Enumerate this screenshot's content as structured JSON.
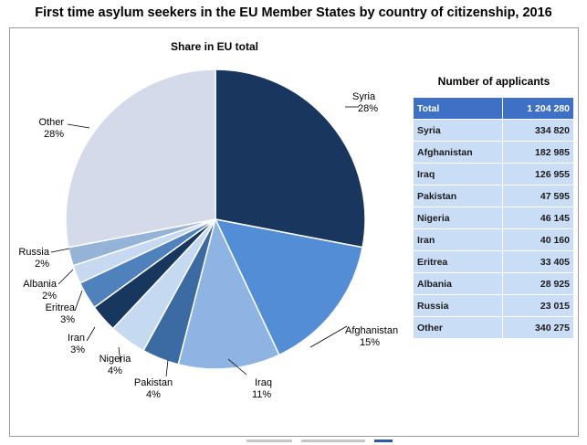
{
  "title": "First time asylum seekers in the EU Member States by country of citizenship, 2016",
  "chart_data": [
    {
      "type": "pie",
      "title": "Share in EU total",
      "categories": [
        "Syria",
        "Afghanistan",
        "Iraq",
        "Pakistan",
        "Nigeria",
        "Iran",
        "Eritrea",
        "Albania",
        "Russia",
        "Other"
      ],
      "values": [
        28,
        15,
        11,
        4,
        4,
        3,
        3,
        2,
        2,
        28
      ],
      "value_labels": [
        "28%",
        "15%",
        "11%",
        "4%",
        "4%",
        "3%",
        "3%",
        "2%",
        "2%",
        "28%"
      ],
      "colors": [
        "#19365f",
        "#538dd5",
        "#8eb4e3",
        "#3c6ba3",
        "#c5d9f1",
        "#17375e",
        "#4f81bd",
        "#c6d9f0",
        "#95b3d7",
        "#d4dae9"
      ]
    },
    {
      "type": "table",
      "title": "Number of applicants",
      "rows": [
        {
          "label": "Total",
          "value": "1 204 280"
        },
        {
          "label": "Syria",
          "value": "334 820"
        },
        {
          "label": "Afghanistan",
          "value": "182 985"
        },
        {
          "label": "Iraq",
          "value": "126 955"
        },
        {
          "label": "Pakistan",
          "value": "47 595"
        },
        {
          "label": "Nigeria",
          "value": "46 145"
        },
        {
          "label": "Iran",
          "value": "40 160"
        },
        {
          "label": "Eritrea",
          "value": "33 405"
        },
        {
          "label": "Albania",
          "value": "28 925"
        },
        {
          "label": "Russia",
          "value": "23 015"
        },
        {
          "label": "Other",
          "value": "340 275"
        }
      ]
    }
  ]
}
